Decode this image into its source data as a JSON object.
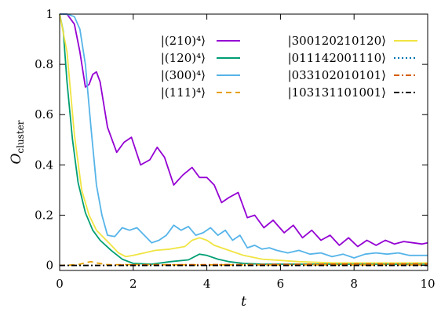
{
  "chart_data": {
    "type": "line",
    "xlabel": "t",
    "ylabel": "O",
    "ylabel_sub": "cluster",
    "xlim": [
      0,
      10
    ],
    "ylim": [
      -0.02,
      1.0
    ],
    "xticks": [
      0,
      2,
      4,
      6,
      8,
      10
    ],
    "xtick_labels": [
      "0",
      "2",
      "4",
      "6",
      "8",
      "10"
    ],
    "yticks": [
      0,
      0.2,
      0.4,
      0.6,
      0.8,
      1.0
    ],
    "ytick_labels": [
      "0",
      "0.2",
      "0.4",
      "0.6",
      "0.8",
      "1"
    ],
    "grid": false,
    "legend_position": "top-right, two columns",
    "series": [
      {
        "name": "|(210)⁴⟩",
        "color": "#9400d3",
        "dash": "solid",
        "x": [
          0,
          0.2,
          0.4,
          0.55,
          0.7,
          0.8,
          0.9,
          1.0,
          1.1,
          1.3,
          1.55,
          1.75,
          1.95,
          2.2,
          2.45,
          2.65,
          2.85,
          3.1,
          3.35,
          3.6,
          3.8,
          4.0,
          4.2,
          4.4,
          4.6,
          4.85,
          5.1,
          5.3,
          5.55,
          5.8,
          6.1,
          6.35,
          6.6,
          6.85,
          7.1,
          7.35,
          7.6,
          7.85,
          8.1,
          8.35,
          8.6,
          8.85,
          9.1,
          9.35,
          9.6,
          9.85,
          10
        ],
        "y": [
          1.0,
          1.0,
          0.96,
          0.85,
          0.71,
          0.72,
          0.76,
          0.77,
          0.73,
          0.55,
          0.45,
          0.49,
          0.51,
          0.4,
          0.42,
          0.47,
          0.43,
          0.32,
          0.36,
          0.39,
          0.35,
          0.35,
          0.32,
          0.25,
          0.27,
          0.29,
          0.19,
          0.2,
          0.15,
          0.18,
          0.13,
          0.16,
          0.11,
          0.14,
          0.1,
          0.12,
          0.08,
          0.11,
          0.075,
          0.1,
          0.08,
          0.1,
          0.085,
          0.095,
          0.09,
          0.085,
          0.09
        ]
      },
      {
        "name": "|(120)⁴⟩",
        "color": "#009e73",
        "dash": "solid",
        "x": [
          0,
          0.1,
          0.2,
          0.35,
          0.5,
          0.7,
          0.9,
          1.1,
          1.4,
          1.7,
          2.0,
          2.5,
          3.0,
          3.5,
          3.8,
          4.0,
          4.3,
          4.6,
          5.0,
          5.5,
          6.0,
          7.0,
          8.0,
          9.0,
          10.0
        ],
        "y": [
          1.0,
          0.93,
          0.73,
          0.5,
          0.33,
          0.21,
          0.14,
          0.1,
          0.06,
          0.025,
          0.008,
          0.005,
          0.015,
          0.022,
          0.045,
          0.04,
          0.025,
          0.015,
          0.008,
          0.005,
          0.005,
          0.005,
          0.005,
          0.005,
          0.005
        ]
      },
      {
        "name": "|(300)⁴⟩",
        "color": "#56b4e9",
        "dash": "solid",
        "x": [
          0,
          0.2,
          0.4,
          0.55,
          0.7,
          0.85,
          1.0,
          1.15,
          1.3,
          1.5,
          1.7,
          1.9,
          2.1,
          2.3,
          2.5,
          2.7,
          2.9,
          3.1,
          3.3,
          3.5,
          3.7,
          3.9,
          4.1,
          4.3,
          4.5,
          4.7,
          4.9,
          5.1,
          5.3,
          5.5,
          5.7,
          5.9,
          6.2,
          6.5,
          6.8,
          7.1,
          7.4,
          7.7,
          8.0,
          8.3,
          8.6,
          8.9,
          9.2,
          9.5,
          9.8,
          10.0
        ],
        "y": [
          1.0,
          1.0,
          0.99,
          0.94,
          0.8,
          0.55,
          0.32,
          0.2,
          0.12,
          0.115,
          0.15,
          0.14,
          0.15,
          0.12,
          0.09,
          0.1,
          0.12,
          0.16,
          0.14,
          0.155,
          0.12,
          0.13,
          0.15,
          0.12,
          0.14,
          0.1,
          0.12,
          0.07,
          0.08,
          0.065,
          0.07,
          0.06,
          0.05,
          0.06,
          0.045,
          0.05,
          0.035,
          0.045,
          0.03,
          0.045,
          0.05,
          0.045,
          0.05,
          0.04,
          0.04,
          0.04
        ]
      },
      {
        "name": "|(111)⁴⟩",
        "color": "#e69f00",
        "dash": "dashed",
        "x": [
          0,
          0.5,
          0.75,
          0.85,
          1.0,
          1.3,
          2.0,
          4.0,
          6.0,
          8.0,
          10.0
        ],
        "y": [
          0,
          0.003,
          0.012,
          0.015,
          0.01,
          0.003,
          0.003,
          0.002,
          0.002,
          0.002,
          0.002
        ]
      },
      {
        "name": "|300120210120⟩",
        "color": "#f0e442",
        "dash": "solid",
        "x": [
          0,
          0.2,
          0.4,
          0.6,
          0.8,
          1.0,
          1.2,
          1.4,
          1.6,
          1.8,
          2.0,
          2.3,
          2.6,
          3.0,
          3.4,
          3.6,
          3.8,
          4.0,
          4.2,
          4.4,
          4.7,
          5.0,
          5.5,
          6.0,
          6.5,
          7.0,
          7.5,
          8.0,
          9.0,
          10.0
        ],
        "y": [
          1.0,
          0.85,
          0.52,
          0.3,
          0.2,
          0.14,
          0.11,
          0.08,
          0.05,
          0.035,
          0.04,
          0.05,
          0.06,
          0.065,
          0.075,
          0.1,
          0.11,
          0.1,
          0.08,
          0.07,
          0.055,
          0.04,
          0.025,
          0.02,
          0.015,
          0.012,
          0.01,
          0.01,
          0.01,
          0.01
        ]
      },
      {
        "name": "|011142001110⟩",
        "color": "#0072b2",
        "dash": "dotted",
        "x": [
          0,
          10
        ],
        "y": [
          0,
          0
        ]
      },
      {
        "name": "|033102010101⟩",
        "color": "#d55e00",
        "dash": "dashdot",
        "x": [
          0,
          1.0,
          2.0,
          4.0,
          6.0,
          7.0,
          8.0,
          9.0,
          10.0
        ],
        "y": [
          0,
          0,
          0.002,
          0.003,
          0.004,
          0.005,
          0.006,
          0.006,
          0.006
        ]
      },
      {
        "name": "|103131101001⟩",
        "color": "#000000",
        "dash": "dashdot",
        "x": [
          0,
          10
        ],
        "y": [
          0,
          0
        ]
      }
    ]
  }
}
